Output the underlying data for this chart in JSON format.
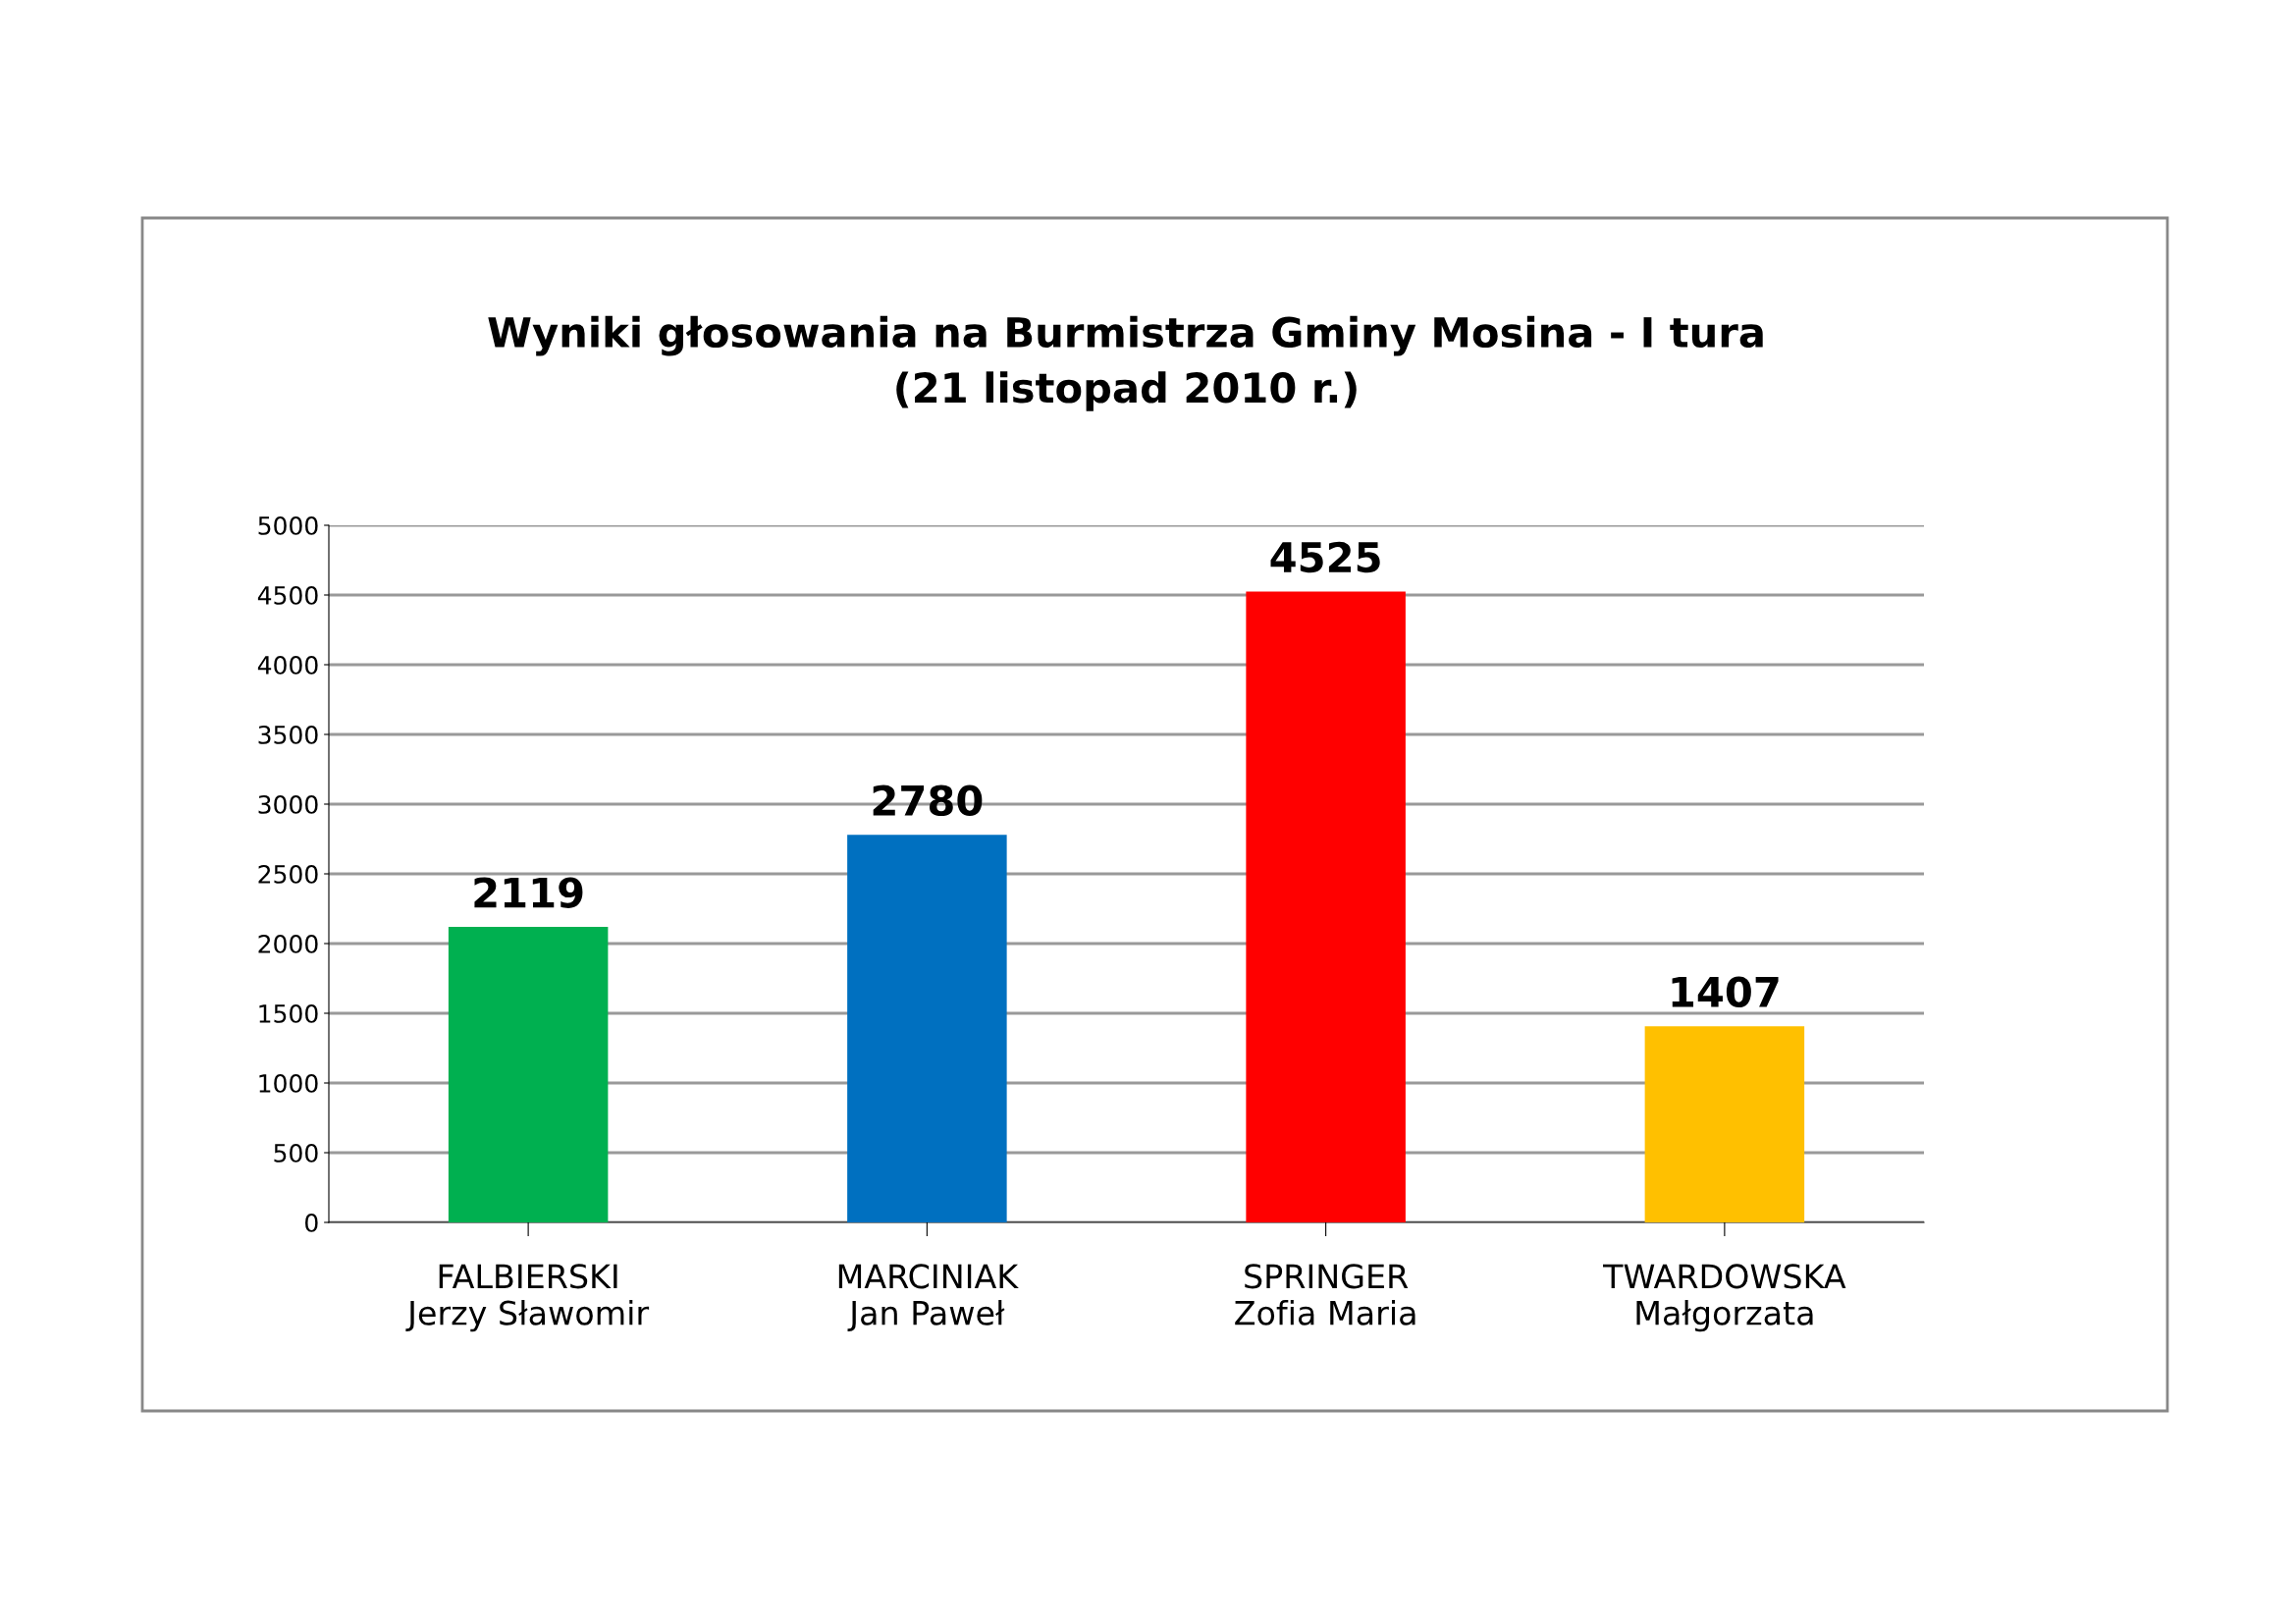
{
  "chart_data": {
    "type": "bar",
    "title": "Wyniki głosowania na Burmistrza Gminy Mosina - I tura\n(21 listopad 2010 r.)",
    "categories": [
      "FALBIERSKI\nJerzy Sławomir",
      "MARCINIAK\nJan Paweł",
      "SPRINGER\nZofia Maria",
      "TWARDOWSKA\nMałgorzata"
    ],
    "values": [
      2119,
      2780,
      4525,
      1407
    ],
    "colors": [
      "#00b050",
      "#0070c0",
      "#ff0000",
      "#ffc000"
    ],
    "ylim": [
      0,
      5000
    ],
    "yticks": [
      0,
      500,
      1000,
      1500,
      2000,
      2500,
      3000,
      3500,
      4000,
      4500,
      5000
    ],
    "grid": "y",
    "data_labels": true
  }
}
